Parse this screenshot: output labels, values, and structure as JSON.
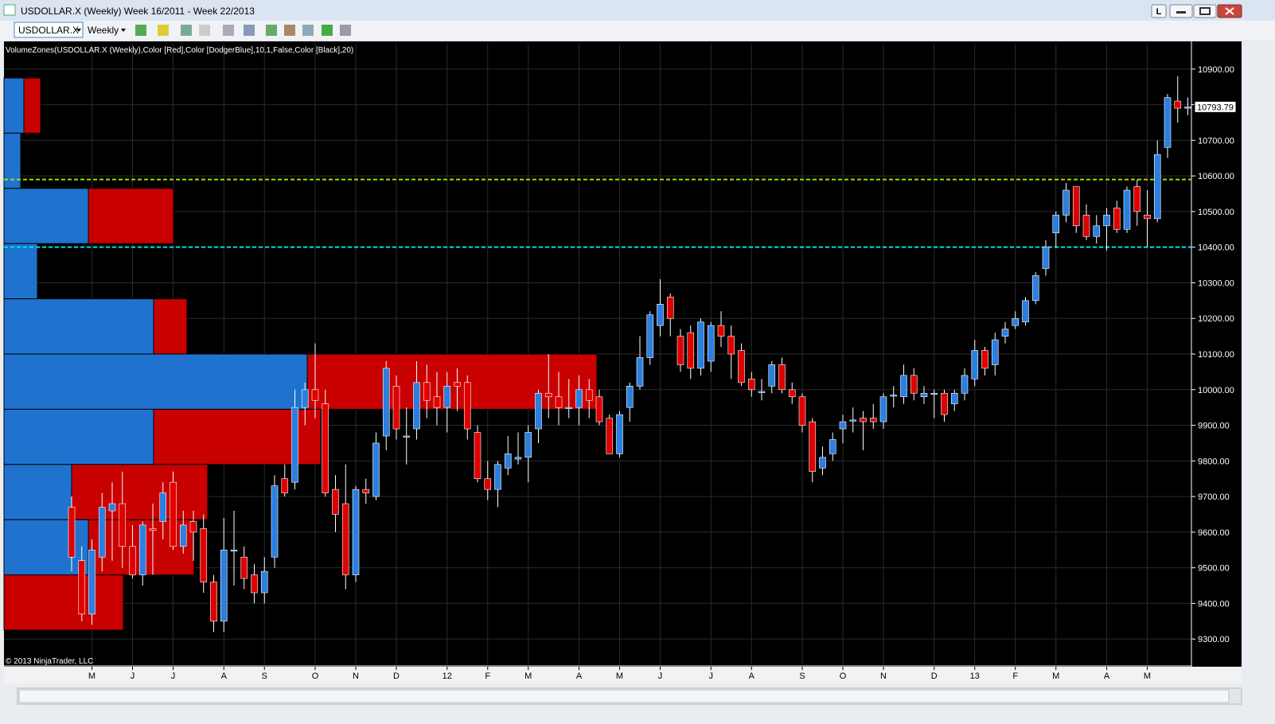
{
  "window": {
    "title": "USDOLLAR.X (Weekly)  Week 16/2011 - Week 22/2013",
    "symbol": "USDOLLAR.X",
    "period": "Weekly",
    "link_button": "L"
  },
  "chart_data": {
    "type": "candlestick",
    "indicator_label": "VolumeZones(USDOLLAR.X (Weekly),Color [Red],Color [DodgerBlue],10,1,False,Color [Black],20)",
    "copyright": "© 2013 NinjaTrader, LLC",
    "up_color": "#2a7fe0",
    "down_color": "#e00000",
    "zone_up_color": "#1f73cf",
    "zone_down_color": "#c80000",
    "ylim": [
      9229,
      10971
    ],
    "yticks": [
      {
        "value": 9300,
        "label": "9300.00"
      },
      {
        "value": 9400,
        "label": "9400.00"
      },
      {
        "value": 9500,
        "label": "9500.00"
      },
      {
        "value": 9600,
        "label": "9600.00"
      },
      {
        "value": 9700,
        "label": "9700.00"
      },
      {
        "value": 9800,
        "label": "9800.00"
      },
      {
        "value": 9900,
        "label": "9900.00"
      },
      {
        "value": 10000,
        "label": "10000.00"
      },
      {
        "value": 10100,
        "label": "10100.00"
      },
      {
        "value": 10200,
        "label": "10200.00"
      },
      {
        "value": 10300,
        "label": "10300.00"
      },
      {
        "value": 10400,
        "label": "10400.00"
      },
      {
        "value": 10500,
        "label": "10500.00"
      },
      {
        "value": 10600,
        "label": "10600.00"
      },
      {
        "value": 10700,
        "label": "10700.00"
      },
      {
        "value": 10800,
        "label": "10800.00"
      },
      {
        "value": 10900,
        "label": "10900.00"
      }
    ],
    "grid": true,
    "levels": [
      {
        "value": 10590,
        "color": "#9be000"
      },
      {
        "value": 10400,
        "color": "#00e0f0"
      }
    ],
    "zones": [
      {
        "high": 10875,
        "low": 10720,
        "up": 25,
        "down": 21
      },
      {
        "high": 10720,
        "low": 10565,
        "up": 21,
        "down": 0
      },
      {
        "high": 10565,
        "low": 10410,
        "up": 106,
        "down": 107
      },
      {
        "high": 10410,
        "low": 10255,
        "up": 42,
        "down": 0
      },
      {
        "high": 10255,
        "low": 10100,
        "up": 188,
        "down": 42
      },
      {
        "high": 10100,
        "low": 9945,
        "up": 381,
        "down": 364
      },
      {
        "high": 9945,
        "low": 9790,
        "up": 188,
        "down": 210
      },
      {
        "high": 9790,
        "low": 9635,
        "up": 85,
        "down": 171
      },
      {
        "high": 9635,
        "low": 9480,
        "up": 106,
        "down": 133
      },
      {
        "high": 9480,
        "low": 9325,
        "up": 0,
        "down": 150
      }
    ],
    "categories": [
      null,
      null,
      "M",
      null,
      null,
      null,
      "J",
      null,
      null,
      null,
      "J",
      null,
      null,
      null,
      null,
      "A",
      null,
      null,
      null,
      "S",
      null,
      null,
      null,
      null,
      "O",
      null,
      null,
      null,
      "N",
      null,
      null,
      null,
      "D",
      null,
      null,
      null,
      null,
      "12",
      null,
      null,
      null,
      "F",
      null,
      null,
      null,
      "M",
      null,
      null,
      null,
      null,
      "A",
      null,
      null,
      null,
      "M",
      null,
      null,
      null,
      "J",
      null,
      null,
      null,
      null,
      "J",
      null,
      null,
      null,
      "A",
      null,
      null,
      null,
      null,
      "S",
      null,
      null,
      null,
      "O",
      null,
      null,
      null,
      "N",
      null,
      null,
      null,
      null,
      "D",
      null,
      null,
      null,
      "13",
      null,
      null,
      null,
      "F",
      null,
      null,
      null,
      "M",
      null,
      null,
      null,
      null,
      "A",
      null,
      null,
      null,
      "M",
      null,
      null,
      null,
      null
    ],
    "open": [
      9670,
      9520,
      9370,
      9530,
      9660,
      9680,
      9560,
      9480,
      9610,
      9630,
      9740,
      9560,
      9630,
      9610,
      9460,
      9350,
      9550,
      9530,
      9480,
      9430,
      9530,
      9750,
      9740,
      9950,
      10000,
      9960,
      9720,
      9680,
      9480,
      9720,
      9700,
      9870,
      10010,
      9870,
      9890,
      10020,
      9980,
      9950,
      10020,
      10020,
      9880,
      9750,
      9720,
      9780,
      9805,
      9810,
      9890,
      9990,
      9980,
      9950,
      9950,
      10000,
      9980,
      9920,
      9820,
      9950,
      10010,
      10090,
      10180,
      10260,
      10150,
      10160,
      10060,
      10080,
      10180,
      10150,
      10110,
      10030,
      9995,
      10010,
      10070,
      10000,
      9980,
      9910,
      9780,
      9820,
      9890,
      9915,
      9920,
      9920,
      9910,
      9985,
      9980,
      10040,
      9980,
      9990,
      9990,
      9960,
      9990,
      10030,
      10110,
      10070,
      10150,
      10180,
      10190,
      10250,
      10340,
      10440,
      10490,
      10570,
      10490,
      10430,
      10460,
      10510,
      10450,
      10570,
      10490,
      10480,
      10680,
      10810,
      10790
    ],
    "high": [
      9700,
      9560,
      9580,
      9710,
      9740,
      9770,
      9620,
      9630,
      9680,
      9740,
      9770,
      9660,
      9660,
      9650,
      9480,
      9640,
      9660,
      9560,
      9510,
      9530,
      9760,
      9790,
      10000,
      10020,
      10130,
      10000,
      9760,
      9790,
      9730,
      9750,
      9880,
      10080,
      10040,
      9950,
      10080,
      10070,
      10050,
      10050,
      10060,
      10040,
      9900,
      9800,
      9800,
      9870,
      9880,
      9900,
      10000,
      10100,
      10050,
      10030,
      10040,
      10030,
      10000,
      9930,
      9940,
      10020,
      10150,
      10220,
      10310,
      10270,
      10170,
      10180,
      10200,
      10190,
      10220,
      10180,
      10130,
      10050,
      10030,
      10080,
      10090,
      10020,
      9990,
      9920,
      9840,
      9880,
      9930,
      9950,
      9940,
      9960,
      9990,
      10010,
      10070,
      10060,
      10010,
      10000,
      10000,
      10000,
      10060,
      10140,
      10120,
      10160,
      10190,
      10220,
      10260,
      10330,
      10420,
      10500,
      10580,
      10570,
      10520,
      10490,
      10510,
      10530,
      10570,
      10590,
      10560,
      10700,
      10830,
      10880,
      10820
    ],
    "low": [
      9490,
      9350,
      9340,
      9490,
      9520,
      9500,
      9470,
      9450,
      9480,
      9580,
      9550,
      9540,
      9520,
      9430,
      9320,
      9320,
      9450,
      9440,
      9400,
      9400,
      9500,
      9700,
      9720,
      9900,
      9920,
      9700,
      9600,
      9440,
      9460,
      9680,
      9690,
      9830,
      9860,
      9790,
      9860,
      9920,
      9900,
      9880,
      9940,
      9860,
      9740,
      9690,
      9670,
      9760,
      9790,
      9740,
      9850,
      9920,
      9900,
      9920,
      9900,
      9920,
      9900,
      9820,
      9810,
      9910,
      10000,
      10070,
      10150,
      10150,
      10050,
      10030,
      10040,
      10050,
      10120,
      10030,
      10010,
      9980,
      9970,
      9990,
      9990,
      9960,
      9880,
      9740,
      9760,
      9800,
      9850,
      9880,
      9830,
      9890,
      9890,
      9950,
      9960,
      9970,
      9960,
      9920,
      9910,
      9940,
      9970,
      10010,
      10040,
      10040,
      10130,
      10170,
      10180,
      10240,
      10320,
      10400,
      10470,
      10440,
      10420,
      10410,
      10390,
      10440,
      10440,
      10460,
      10400,
      10470,
      10650,
      10750,
      10770
    ],
    "close": [
      9530,
      9370,
      9550,
      9670,
      9680,
      9560,
      9480,
      9620,
      9605,
      9710,
      9560,
      9620,
      9600,
      9460,
      9350,
      9550,
      9550,
      9470,
      9430,
      9490,
      9730,
      9710,
      9950,
      10000,
      9970,
      9710,
      9650,
      9480,
      9720,
      9710,
      9850,
      10060,
      9890,
      9870,
      10020,
      9970,
      9950,
      10010,
      10010,
      9890,
      9750,
      9720,
      9790,
      9820,
      9810,
      9880,
      9990,
      9980,
      9950,
      9950,
      10000,
      9970,
      9910,
      9820,
      9930,
      10010,
      10090,
      10210,
      10240,
      10200,
      10070,
      10060,
      10190,
      10180,
      10150,
      10100,
      10020,
      10000,
      9995,
      10070,
      10000,
      9980,
      9900,
      9770,
      9810,
      9860,
      9910,
      9915,
      9910,
      9910,
      9980,
      9985,
      10040,
      9990,
      9990,
      9990,
      9930,
      9990,
      10040,
      10110,
      10060,
      10140,
      10170,
      10200,
      10250,
      10320,
      10400,
      10490,
      10560,
      10460,
      10430,
      10460,
      10490,
      10450,
      10560,
      10500,
      10480,
      10660,
      10820,
      10790,
      10793.79
    ]
  }
}
